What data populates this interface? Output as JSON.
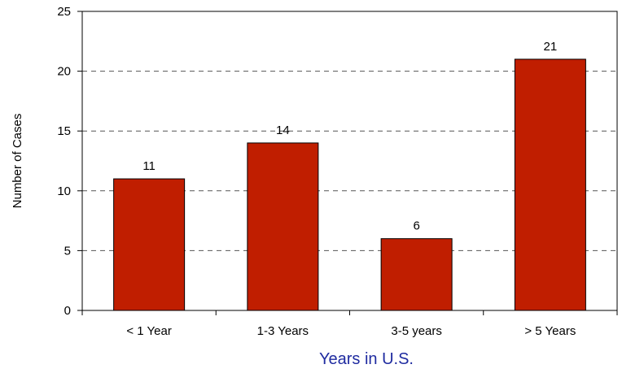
{
  "chart_data": {
    "type": "bar",
    "categories": [
      "< 1 Year",
      "1-3 Years",
      "3-5 years",
      "> 5 Years"
    ],
    "values": [
      11,
      14,
      6,
      21
    ],
    "data_labels": [
      "11",
      "14",
      "6",
      "21"
    ],
    "xlabel": "Years in U.S.",
    "ylabel": "Number of Cases",
    "ylim": [
      0,
      25
    ],
    "yticks": [
      "0",
      "5",
      "10",
      "15",
      "20",
      "25"
    ],
    "grid": "horizontal dashed",
    "legend": "none",
    "colors": {
      "bar_fill": "#C01E00",
      "bar_stroke": "#000000",
      "xlabel": "#1F2BA0",
      "grid": "#555555"
    }
  }
}
